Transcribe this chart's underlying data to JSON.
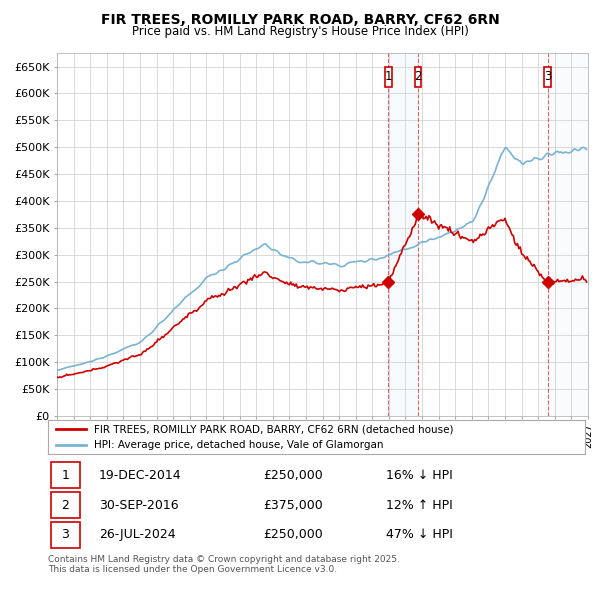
{
  "title": "FIR TREES, ROMILLY PARK ROAD, BARRY, CF62 6RN",
  "subtitle": "Price paid vs. HM Land Registry's House Price Index (HPI)",
  "ylabel_ticks": [
    "£0",
    "£50K",
    "£100K",
    "£150K",
    "£200K",
    "£250K",
    "£300K",
    "£350K",
    "£400K",
    "£450K",
    "£500K",
    "£550K",
    "£600K",
    "£650K"
  ],
  "ytick_values": [
    0,
    50000,
    100000,
    150000,
    200000,
    250000,
    300000,
    350000,
    400000,
    450000,
    500000,
    550000,
    600000,
    650000
  ],
  "ylim": [
    0,
    675000
  ],
  "xlim_start": 1995.0,
  "xlim_end": 2027.0,
  "hpi_color": "#7ab3d4",
  "price_color": "#cc0000",
  "sale1_year": 2014,
  "sale1_month": 12,
  "sale1_date": 2014.96,
  "sale1_price": 250000,
  "sale2_year": 2016,
  "sale2_month": 9,
  "sale2_date": 2016.75,
  "sale2_price": 375000,
  "sale3_year": 2024,
  "sale3_month": 7,
  "sale3_date": 2024.56,
  "sale3_price": 250000,
  "legend1": "FIR TREES, ROMILLY PARK ROAD, BARRY, CF62 6RN (detached house)",
  "legend2": "HPI: Average price, detached house, Vale of Glamorgan",
  "table_entries": [
    {
      "num": "1",
      "date": "19-DEC-2014",
      "price": "£250,000",
      "hpi": "16% ↓ HPI"
    },
    {
      "num": "2",
      "date": "30-SEP-2016",
      "price": "£375,000",
      "hpi": "12% ↑ HPI"
    },
    {
      "num": "3",
      "date": "26-JUL-2024",
      "price": "£250,000",
      "hpi": "47% ↓ HPI"
    }
  ],
  "footer": "Contains HM Land Registry data © Crown copyright and database right 2025.\nThis data is licensed under the Open Government Licence v3.0.",
  "bg_color": "#ffffff",
  "grid_color": "#cccccc"
}
